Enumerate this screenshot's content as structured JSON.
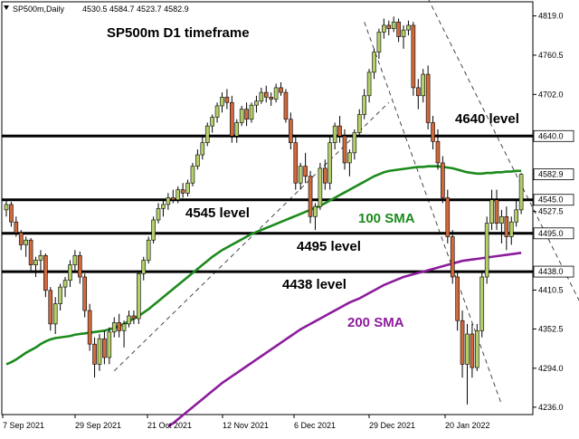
{
  "header": {
    "symbol": "SP500m,Daily",
    "ohlc": "4530.5 4584.7 4523.7 4582.9"
  },
  "chart_title": "SP500m D1 timeframe",
  "annotations": {
    "level_4640": "4640 level",
    "level_4545": "4545 level",
    "level_4495": "4495 level",
    "level_4438": "4438 level",
    "sma100": "100 SMA",
    "sma200": "200 SMA"
  },
  "colors": {
    "bull": "#b5cf6b",
    "bear": "#d06a3c",
    "sma100": "#1c8a1c",
    "sma200": "#8c1c9c",
    "level_line": "#000000",
    "trendline": "#333333"
  },
  "chart_data": {
    "type": "candlestick",
    "title": "SP500m D1 timeframe",
    "ylim": [
      4225,
      4840
    ],
    "y_ticks": [
      4819.0,
      4760.5,
      4702.0,
      4640.0,
      4582.9,
      4545.0,
      4527.5,
      4495.0,
      4438.0,
      4410.5,
      4352.5,
      4294.0,
      4236.0
    ],
    "x_tick_labels": [
      "7 Sep 2021",
      "29 Sep 2021",
      "21 Oct 2021",
      "12 Nov 2021",
      "6 Dec 2021",
      "29 Dec 2021",
      "20 Jan 2022"
    ],
    "horizontal_levels": [
      {
        "value": 4640,
        "label": "4640 level"
      },
      {
        "value": 4545,
        "label": "4545 level"
      },
      {
        "value": 4495,
        "label": "4495 level"
      },
      {
        "value": 4438,
        "label": "4438 level"
      }
    ],
    "candles": [
      [
        4530,
        4545,
        4520,
        4538
      ],
      [
        4538,
        4542,
        4505,
        4512
      ],
      [
        4512,
        4520,
        4490,
        4496
      ],
      [
        4496,
        4500,
        4470,
        4478
      ],
      [
        4478,
        4490,
        4460,
        4485
      ],
      [
        4485,
        4488,
        4440,
        4448
      ],
      [
        4448,
        4460,
        4430,
        4455
      ],
      [
        4455,
        4470,
        4440,
        4462
      ],
      [
        4462,
        4465,
        4400,
        4410
      ],
      [
        4410,
        4415,
        4350,
        4360
      ],
      [
        4360,
        4400,
        4345,
        4390
      ],
      [
        4390,
        4420,
        4380,
        4415
      ],
      [
        4415,
        4430,
        4400,
        4425
      ],
      [
        4425,
        4455,
        4415,
        4448
      ],
      [
        4448,
        4470,
        4440,
        4462
      ],
      [
        4462,
        4468,
        4420,
        4430
      ],
      [
        4430,
        4435,
        4370,
        4380
      ],
      [
        4380,
        4390,
        4320,
        4330
      ],
      [
        4330,
        4340,
        4280,
        4300
      ],
      [
        4300,
        4345,
        4290,
        4338
      ],
      [
        4338,
        4350,
        4300,
        4310
      ],
      [
        4310,
        4355,
        4300,
        4348
      ],
      [
        4348,
        4370,
        4340,
        4362
      ],
      [
        4362,
        4375,
        4340,
        4350
      ],
      [
        4350,
        4365,
        4325,
        4360
      ],
      [
        4360,
        4380,
        4355,
        4372
      ],
      [
        4372,
        4380,
        4360,
        4368
      ],
      [
        4368,
        4440,
        4360,
        4435
      ],
      [
        4435,
        4460,
        4425,
        4455
      ],
      [
        4455,
        4490,
        4450,
        4485
      ],
      [
        4485,
        4520,
        4480,
        4515
      ],
      [
        4515,
        4540,
        4510,
        4532
      ],
      [
        4532,
        4545,
        4520,
        4538
      ],
      [
        4538,
        4555,
        4530,
        4548
      ],
      [
        4548,
        4560,
        4540,
        4545
      ],
      [
        4545,
        4565,
        4540,
        4560
      ],
      [
        4560,
        4570,
        4548,
        4555
      ],
      [
        4555,
        4575,
        4550,
        4570
      ],
      [
        4570,
        4600,
        4565,
        4595
      ],
      [
        4595,
        4620,
        4590,
        4612
      ],
      [
        4612,
        4640,
        4605,
        4630
      ],
      [
        4630,
        4660,
        4625,
        4655
      ],
      [
        4655,
        4672,
        4645,
        4668
      ],
      [
        4668,
        4690,
        4660,
        4685
      ],
      [
        4685,
        4705,
        4675,
        4698
      ],
      [
        4698,
        4710,
        4680,
        4690
      ],
      [
        4690,
        4700,
        4630,
        4640
      ],
      [
        4640,
        4665,
        4630,
        4660
      ],
      [
        4660,
        4685,
        4655,
        4680
      ],
      [
        4680,
        4690,
        4655,
        4665
      ],
      [
        4665,
        4690,
        4660,
        4686
      ],
      [
        4686,
        4700,
        4675,
        4692
      ],
      [
        4692,
        4712,
        4688,
        4705
      ],
      [
        4705,
        4715,
        4690,
        4698
      ],
      [
        4698,
        4705,
        4685,
        4695
      ],
      [
        4695,
        4718,
        4690,
        4712
      ],
      [
        4712,
        4720,
        4700,
        4705
      ],
      [
        4705,
        4710,
        4660,
        4665
      ],
      [
        4665,
        4675,
        4620,
        4630
      ],
      [
        4630,
        4640,
        4560,
        4570
      ],
      [
        4570,
        4600,
        4560,
        4595
      ],
      [
        4595,
        4615,
        4570,
        4580
      ],
      [
        4580,
        4588,
        4510,
        4520
      ],
      [
        4520,
        4540,
        4500,
        4535
      ],
      [
        4535,
        4600,
        4530,
        4592
      ],
      [
        4592,
        4605,
        4560,
        4570
      ],
      [
        4570,
        4640,
        4560,
        4630
      ],
      [
        4630,
        4660,
        4620,
        4655
      ],
      [
        4655,
        4670,
        4630,
        4640
      ],
      [
        4640,
        4650,
        4590,
        4600
      ],
      [
        4600,
        4620,
        4580,
        4615
      ],
      [
        4615,
        4650,
        4605,
        4645
      ],
      [
        4645,
        4680,
        4640,
        4672
      ],
      [
        4672,
        4710,
        4665,
        4700
      ],
      [
        4700,
        4740,
        4690,
        4735
      ],
      [
        4735,
        4770,
        4725,
        4765
      ],
      [
        4765,
        4800,
        4755,
        4795
      ],
      [
        4795,
        4815,
        4785,
        4805
      ],
      [
        4805,
        4812,
        4790,
        4800
      ],
      [
        4800,
        4818,
        4795,
        4810
      ],
      [
        4810,
        4815,
        4780,
        4788
      ],
      [
        4788,
        4805,
        4770,
        4798
      ],
      [
        4798,
        4812,
        4790,
        4805
      ],
      [
        4805,
        4810,
        4700,
        4712
      ],
      [
        4712,
        4725,
        4680,
        4700
      ],
      [
        4700,
        4740,
        4690,
        4732
      ],
      [
        4732,
        4745,
        4650,
        4660
      ],
      [
        4660,
        4670,
        4620,
        4632
      ],
      [
        4632,
        4650,
        4590,
        4600
      ],
      [
        4600,
        4610,
        4540,
        4548
      ],
      [
        4548,
        4560,
        4480,
        4490
      ],
      [
        4490,
        4500,
        4420,
        4430
      ],
      [
        4430,
        4440,
        4350,
        4365
      ],
      [
        4365,
        4380,
        4280,
        4300
      ],
      [
        4300,
        4360,
        4240,
        4345
      ],
      [
        4345,
        4360,
        4280,
        4295
      ],
      [
        4295,
        4360,
        4290,
        4350
      ],
      [
        4350,
        4440,
        4340,
        4430
      ],
      [
        4430,
        4520,
        4420,
        4510
      ],
      [
        4510,
        4560,
        4500,
        4545
      ],
      [
        4545,
        4560,
        4500,
        4510
      ],
      [
        4510,
        4530,
        4480,
        4520
      ],
      [
        4520,
        4535,
        4470,
        4490
      ],
      [
        4490,
        4520,
        4478,
        4512
      ],
      [
        4512,
        4545,
        4505,
        4530
      ],
      [
        4530,
        4584.7,
        4523.7,
        4582.9
      ]
    ],
    "sma100": [
      4300,
      4303,
      4307,
      4312,
      4317,
      4321,
      4325,
      4330,
      4334,
      4337,
      4339,
      4340,
      4341,
      4342,
      4344,
      4345,
      4346,
      4347,
      4348,
      4349,
      4350,
      4352,
      4354,
      4357,
      4360,
      4364,
      4368,
      4372,
      4377,
      4382,
      4388,
      4394,
      4400,
      4406,
      4412,
      4418,
      4424,
      4430,
      4436,
      4442,
      4448,
      4454,
      4460,
      4465,
      4470,
      4474,
      4478,
      4482,
      4486,
      4490,
      4494,
      4497,
      4500,
      4503,
      4506,
      4509,
      4512,
      4515,
      4518,
      4521,
      4524,
      4527,
      4530,
      4533,
      4536,
      4540,
      4544,
      4548,
      4552,
      4556,
      4560,
      4564,
      4568,
      4572,
      4576,
      4580,
      4583,
      4586,
      4588,
      4589,
      4590,
      4591,
      4592,
      4593,
      4594,
      4594,
      4595,
      4595,
      4595,
      4594,
      4593,
      4592,
      4590,
      4588,
      4586,
      4585,
      4584,
      4584,
      4585,
      4585,
      4586,
      4586,
      4587,
      4587,
      4588,
      4588
    ],
    "sma200_start_index": 33,
    "sma200": [
      4207,
      4212,
      4218,
      4224,
      4230,
      4236,
      4242,
      4248,
      4254,
      4260,
      4266,
      4272,
      4277,
      4282,
      4287,
      4292,
      4297,
      4302,
      4307,
      4312,
      4317,
      4322,
      4327,
      4332,
      4337,
      4342,
      4347,
      4352,
      4356,
      4360,
      4364,
      4368,
      4372,
      4376,
      4380,
      4384,
      4388,
      4392,
      4395,
      4398,
      4402,
      4406,
      4410,
      4414,
      4418,
      4421,
      4424,
      4427,
      4430,
      4432,
      4434,
      4436,
      4438,
      4440,
      4442,
      4444,
      4446,
      4448,
      4450,
      4452,
      4454,
      4455,
      4456,
      4457,
      4458,
      4459,
      4460,
      4461,
      4462,
      4463,
      4464,
      4465,
      4466
    ],
    "trendlines": [
      {
        "from": [
          22,
          4290
        ],
        "to": [
          78,
          4690
        ]
      },
      {
        "from": [
          73,
          4810
        ],
        "to": [
          101,
          4240
        ]
      },
      {
        "from": [
          86,
          4845
        ],
        "to": [
          124,
          4290
        ]
      }
    ]
  }
}
